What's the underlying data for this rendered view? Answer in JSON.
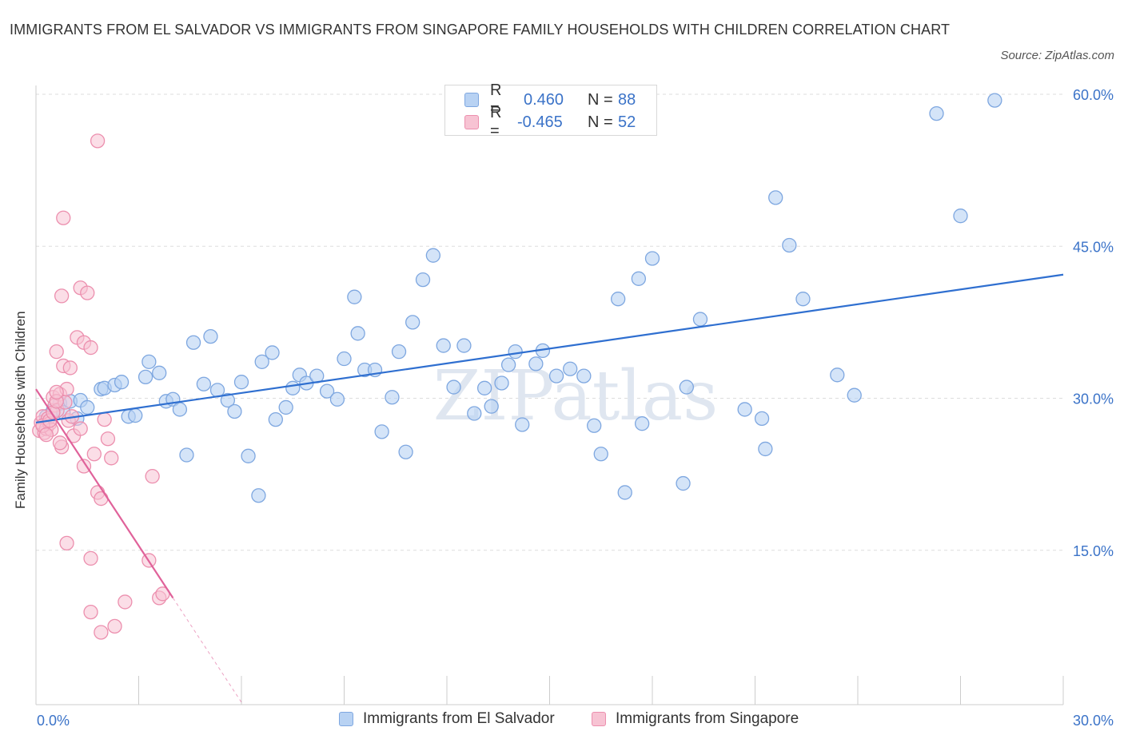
{
  "title": "IMMIGRANTS FROM EL SALVADOR VS IMMIGRANTS FROM SINGAPORE FAMILY HOUSEHOLDS WITH CHILDREN CORRELATION CHART",
  "source": "Source: ZipAtlas.com",
  "legend": {
    "r_label": "R =",
    "n_label": "N =",
    "series1": {
      "r": "0.460",
      "n": "88"
    },
    "series2": {
      "r": "-0.465",
      "n": "52"
    }
  },
  "bottom_legend": {
    "series1": "Immigrants from El Salvador",
    "series2": "Immigrants from Singapore"
  },
  "colors": {
    "blue_fill": "#b8d2f3",
    "blue_stroke": "#7ea7e0",
    "blue_line": "#2f6fd0",
    "pink_fill": "#f7c3d3",
    "pink_stroke": "#ec8fae",
    "pink_line": "#e0629a",
    "axis_text": "#3b73c8",
    "grid": "#dddddd"
  },
  "chart_data": {
    "type": "scatter",
    "xlabel": "",
    "ylabel": "Family Households with Children",
    "xlim": [
      0,
      30
    ],
    "ylim": [
      0,
      60
    ],
    "x_tick_labels": [
      "0.0%",
      "30.0%"
    ],
    "y_ticks": [
      15,
      30,
      45,
      60
    ],
    "y_tick_labels": [
      "15.0%",
      "30.0%",
      "45.0%",
      "60.0%"
    ],
    "watermark": "ZIPatlas",
    "series": [
      {
        "name": "Immigrants from El Salvador",
        "color": "blue",
        "trend": {
          "x": [
            0.0,
            30.0
          ],
          "y": [
            27.6,
            42.2
          ]
        },
        "points": [
          [
            0.3,
            28.2
          ],
          [
            0.5,
            28.8
          ],
          [
            0.7,
            29.5
          ],
          [
            0.8,
            28.6
          ],
          [
            1.0,
            29.7
          ],
          [
            1.2,
            28.0
          ],
          [
            1.3,
            29.8
          ],
          [
            1.5,
            29.1
          ],
          [
            1.9,
            30.9
          ],
          [
            2.0,
            31.0
          ],
          [
            2.3,
            31.3
          ],
          [
            2.5,
            31.6
          ],
          [
            2.7,
            28.2
          ],
          [
            2.9,
            28.3
          ],
          [
            3.2,
            32.1
          ],
          [
            3.3,
            33.6
          ],
          [
            3.6,
            32.5
          ],
          [
            3.8,
            29.7
          ],
          [
            4.0,
            29.9
          ],
          [
            4.2,
            28.9
          ],
          [
            4.4,
            24.4
          ],
          [
            4.6,
            35.5
          ],
          [
            4.9,
            31.4
          ],
          [
            5.1,
            36.1
          ],
          [
            5.3,
            30.8
          ],
          [
            5.6,
            29.8
          ],
          [
            5.8,
            28.7
          ],
          [
            6.0,
            31.6
          ],
          [
            6.2,
            24.3
          ],
          [
            6.5,
            20.4
          ],
          [
            6.6,
            33.6
          ],
          [
            6.9,
            34.5
          ],
          [
            7.0,
            27.9
          ],
          [
            7.3,
            29.1
          ],
          [
            7.5,
            31.0
          ],
          [
            7.7,
            32.3
          ],
          [
            7.9,
            31.5
          ],
          [
            8.2,
            32.2
          ],
          [
            8.5,
            30.7
          ],
          [
            8.8,
            29.9
          ],
          [
            9.0,
            33.9
          ],
          [
            9.3,
            40.0
          ],
          [
            9.4,
            36.4
          ],
          [
            9.6,
            32.8
          ],
          [
            9.9,
            32.8
          ],
          [
            10.1,
            26.7
          ],
          [
            10.4,
            30.1
          ],
          [
            10.6,
            34.6
          ],
          [
            10.8,
            24.7
          ],
          [
            11.0,
            37.5
          ],
          [
            11.3,
            41.7
          ],
          [
            11.6,
            44.1
          ],
          [
            11.9,
            35.2
          ],
          [
            12.2,
            31.1
          ],
          [
            12.5,
            35.2
          ],
          [
            12.8,
            28.5
          ],
          [
            13.1,
            31.0
          ],
          [
            13.3,
            29.2
          ],
          [
            13.6,
            31.5
          ],
          [
            13.8,
            33.3
          ],
          [
            14.0,
            34.6
          ],
          [
            14.2,
            27.4
          ],
          [
            14.6,
            33.4
          ],
          [
            14.8,
            34.7
          ],
          [
            15.2,
            32.2
          ],
          [
            15.6,
            32.9
          ],
          [
            16.0,
            32.2
          ],
          [
            16.3,
            27.3
          ],
          [
            16.5,
            24.5
          ],
          [
            17.0,
            39.8
          ],
          [
            17.2,
            20.7
          ],
          [
            17.6,
            41.8
          ],
          [
            17.7,
            27.5
          ],
          [
            18.0,
            43.8
          ],
          [
            18.9,
            21.6
          ],
          [
            19.0,
            31.1
          ],
          [
            19.4,
            37.8
          ],
          [
            20.7,
            28.9
          ],
          [
            21.2,
            28.0
          ],
          [
            21.3,
            25.0
          ],
          [
            21.6,
            49.8
          ],
          [
            22.0,
            45.1
          ],
          [
            22.4,
            39.8
          ],
          [
            23.4,
            32.3
          ],
          [
            23.9,
            30.3
          ],
          [
            26.3,
            58.1
          ],
          [
            27.0,
            48.0
          ],
          [
            28.0,
            59.4
          ]
        ]
      },
      {
        "name": "Immigrants from Singapore",
        "color": "pink",
        "trend": {
          "x": [
            0.0,
            4.0
          ],
          "y": [
            30.9,
            10.3
          ],
          "dashed_to": {
            "x": 6.0,
            "y": 0.0
          }
        },
        "points": [
          [
            0.1,
            26.8
          ],
          [
            0.15,
            27.6
          ],
          [
            0.2,
            28.2
          ],
          [
            0.25,
            26.6
          ],
          [
            0.3,
            27.0
          ],
          [
            0.35,
            28.0
          ],
          [
            0.4,
            27.5
          ],
          [
            0.45,
            26.9
          ],
          [
            0.5,
            30.1
          ],
          [
            0.55,
            29.3
          ],
          [
            0.6,
            34.6
          ],
          [
            0.62,
            28.8
          ],
          [
            0.7,
            30.4
          ],
          [
            0.75,
            25.2
          ],
          [
            0.8,
            33.2
          ],
          [
            0.85,
            29.6
          ],
          [
            0.9,
            30.9
          ],
          [
            0.95,
            27.8
          ],
          [
            1.0,
            33.0
          ],
          [
            1.05,
            28.2
          ],
          [
            1.1,
            26.3
          ],
          [
            0.2,
            27.3
          ],
          [
            0.3,
            26.4
          ],
          [
            0.4,
            27.8
          ],
          [
            0.5,
            28.6
          ],
          [
            0.6,
            29.7
          ],
          [
            0.7,
            25.6
          ],
          [
            0.8,
            47.8
          ],
          [
            0.75,
            40.1
          ],
          [
            0.9,
            15.7
          ],
          [
            0.6,
            30.6
          ],
          [
            1.2,
            36.0
          ],
          [
            1.3,
            27.0
          ],
          [
            1.4,
            23.3
          ],
          [
            1.3,
            40.9
          ],
          [
            1.4,
            35.5
          ],
          [
            1.5,
            40.4
          ],
          [
            1.6,
            35.0
          ],
          [
            1.7,
            24.5
          ],
          [
            1.8,
            20.7
          ],
          [
            1.9,
            20.1
          ],
          [
            2.0,
            27.9
          ],
          [
            2.1,
            26.0
          ],
          [
            2.2,
            24.1
          ],
          [
            1.8,
            55.4
          ],
          [
            1.6,
            14.2
          ],
          [
            1.6,
            8.9
          ],
          [
            1.9,
            6.9
          ],
          [
            2.3,
            7.5
          ],
          [
            2.6,
            9.9
          ],
          [
            3.3,
            14.0
          ],
          [
            3.4,
            22.3
          ]
        ],
        "extra_points": [
          [
            3.6,
            10.3
          ],
          [
            3.7,
            10.7
          ]
        ]
      }
    ]
  }
}
